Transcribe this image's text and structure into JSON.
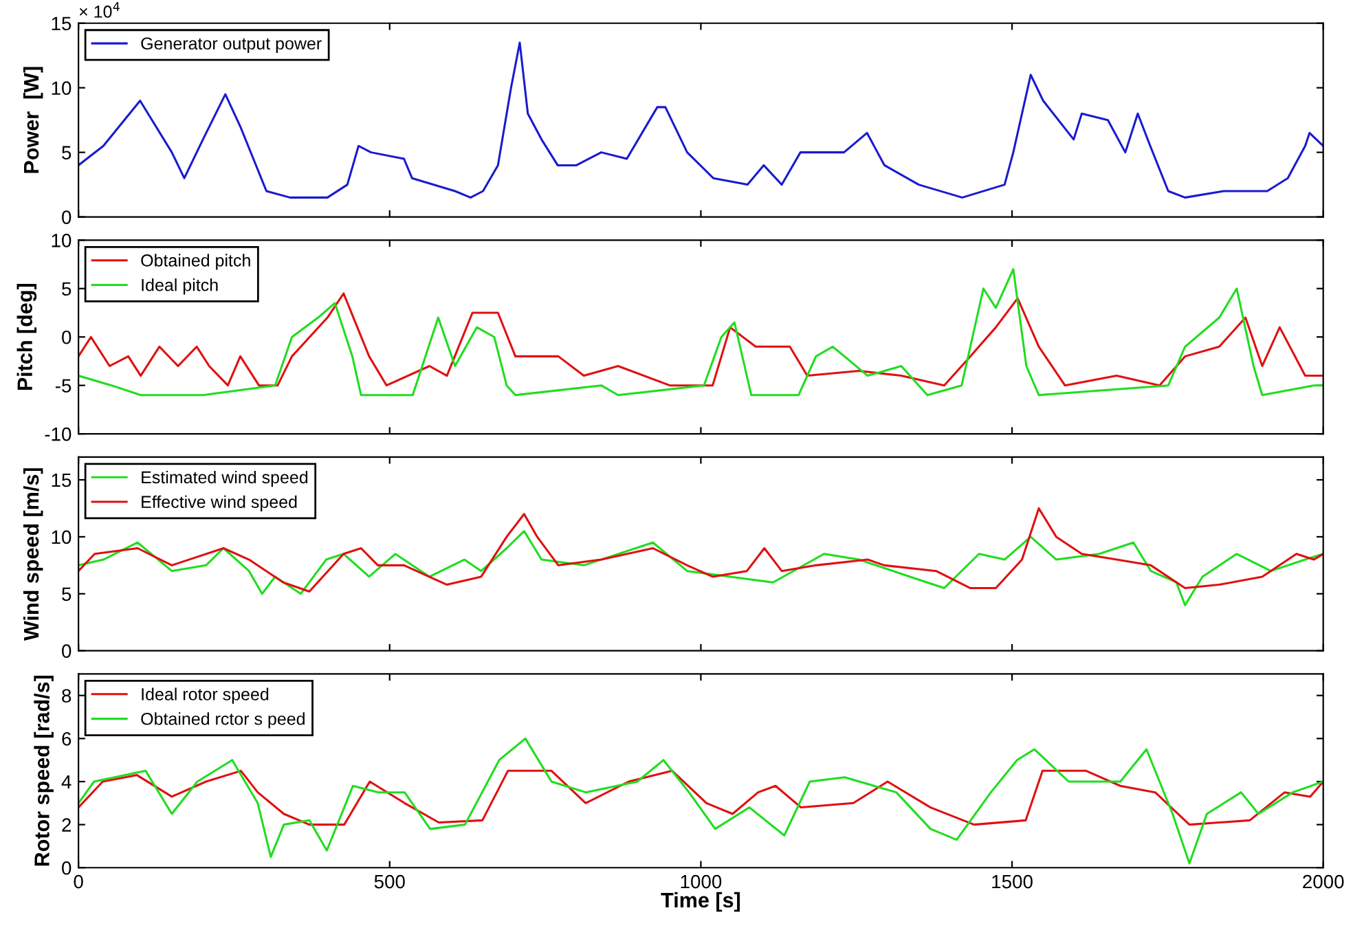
{
  "chart_data": [
    {
      "type": "line",
      "ylabel": "Power  [W]",
      "annotations": [
        "× 10$^{4}$"
      ],
      "xlim": [
        0,
        2000
      ],
      "xticks": [
        0,
        500,
        1000,
        1500,
        2000
      ],
      "ylim": [
        0,
        15
      ],
      "yticks": [
        0,
        5,
        10,
        15
      ],
      "tick_labels": "y",
      "legend": "top left",
      "grid": false,
      "series": [
        {
          "name": "Generator output power",
          "color": "#1a1ad0",
          "x": [
            0,
            40,
            99,
            150,
            170,
            200,
            236,
            260,
            302,
            340,
            400,
            432,
            450,
            470,
            523,
            536,
            605,
            630,
            650,
            674,
            695,
            709,
            722,
            744,
            770,
            800,
            840,
            881,
            930,
            943,
            978,
            1020,
            1075,
            1101,
            1130,
            1160,
            1230,
            1267,
            1295,
            1350,
            1420,
            1488,
            1502,
            1530,
            1550,
            1599,
            1612,
            1654,
            1682,
            1702,
            1722,
            1751,
            1778,
            1840,
            1910,
            1943,
            1971,
            1978,
            2000
          ],
          "values": [
            4,
            5.5,
            9,
            5,
            3,
            6,
            9.5,
            7,
            2,
            1.5,
            1.5,
            2.5,
            5.5,
            5,
            4.5,
            3,
            2,
            1.5,
            2,
            4,
            10,
            13.5,
            8,
            6,
            4,
            4,
            5,
            4.5,
            8.5,
            8.5,
            5,
            3,
            2.5,
            4,
            2.5,
            5,
            5,
            6.5,
            4,
            2.5,
            1.5,
            2.5,
            5,
            11,
            9,
            6,
            8,
            7.5,
            5,
            8,
            5.5,
            2,
            1.5,
            2,
            2,
            3,
            5.5,
            6.5,
            5.5
          ]
        }
      ]
    },
    {
      "type": "line",
      "ylabel": "Pitch [deg]",
      "xlim": [
        0,
        2000
      ],
      "xticks": [
        0,
        500,
        1000,
        1500,
        2000
      ],
      "ylim": [
        -10,
        10
      ],
      "yticks": [
        -10,
        -5,
        0,
        5,
        10
      ],
      "tick_labels": "y",
      "legend": "top left",
      "grid": false,
      "series": [
        {
          "name": "Obtained pitch",
          "color": "#e01010",
          "x": [
            0,
            20,
            50,
            80,
            100,
            130,
            160,
            190,
            210,
            240,
            260,
            290,
            320,
            343,
            400,
            426,
            467,
            495,
            564,
            592,
            633,
            674,
            702,
            771,
            812,
            867,
            950,
            1019,
            1047,
            1088,
            1143,
            1171,
            1254,
            1322,
            1391,
            1433,
            1474,
            1509,
            1543,
            1585,
            1668,
            1737,
            1778,
            1833,
            1875,
            1902,
            1930,
            1971,
            2000
          ],
          "values": [
            -2,
            0,
            -3,
            -2,
            -4,
            -1,
            -3,
            -1,
            -3,
            -5,
            -2,
            -5,
            -5,
            -2,
            2,
            4.5,
            -2,
            -5,
            -3,
            -4,
            2.5,
            2.5,
            -2,
            -2,
            -4,
            -3,
            -5,
            -5,
            1,
            -1,
            -1,
            -4,
            -3.5,
            -4,
            -5,
            -2,
            1,
            4,
            -1,
            -5,
            -4,
            -5,
            -2,
            -1,
            2,
            -3,
            1,
            -4,
            -4
          ]
        },
        {
          "name": "Ideal pitch",
          "color": "#20dd20",
          "x": [
            0,
            53,
            100,
            200,
            316,
            343,
            385,
            412,
            440,
            454,
            537,
            578,
            605,
            640,
            668,
            688,
            702,
            840,
            867,
            1005,
            1033,
            1054,
            1081,
            1157,
            1185,
            1212,
            1268,
            1322,
            1364,
            1419,
            1454,
            1474,
            1502,
            1523,
            1543,
            1751,
            1778,
            1833,
            1861,
            1888,
            1902,
            1985,
            2000
          ],
          "values": [
            -4,
            -5,
            -6,
            -6,
            -5,
            0,
            2,
            3.5,
            -2,
            -6,
            -6,
            2,
            -3,
            1,
            0,
            -5,
            -6,
            -5,
            -6,
            -5,
            0,
            1.5,
            -6,
            -6,
            -2,
            -1,
            -4,
            -3,
            -6,
            -5,
            5,
            3,
            7,
            -3,
            -6,
            -5,
            -1,
            2,
            5,
            -3,
            -6,
            -5,
            -5
          ]
        }
      ]
    },
    {
      "type": "line",
      "ylabel": "Wind speed [m/s]",
      "xlim": [
        0,
        2000
      ],
      "xticks": [
        0,
        500,
        1000,
        1500,
        2000
      ],
      "ylim": [
        0,
        17
      ],
      "yticks": [
        0,
        5,
        10,
        15
      ],
      "tick_labels": "y",
      "legend": "top left",
      "grid": false,
      "series": [
        {
          "name": "Estimated wind speed",
          "color": "#20dd20",
          "x": [
            0,
            40,
            95,
            150,
            205,
            233,
            274,
            295,
            316,
            357,
            398,
            426,
            467,
            509,
            564,
            620,
            647,
            688,
            716,
            744,
            812,
            923,
            978,
            1047,
            1116,
            1198,
            1254,
            1336,
            1391,
            1447,
            1488,
            1530,
            1571,
            1640,
            1695,
            1723,
            1764,
            1778,
            1806,
            1861,
            1916,
            1971,
            2000
          ],
          "values": [
            7.5,
            8,
            9.5,
            7,
            7.5,
            9,
            7,
            5,
            6.5,
            5,
            8,
            8.5,
            6.5,
            8.5,
            6.5,
            8,
            7,
            9,
            10.5,
            8,
            7.5,
            9.5,
            7,
            6.5,
            6,
            8.5,
            8,
            6.5,
            5.5,
            8.5,
            8,
            10,
            8,
            8.5,
            9.5,
            7,
            6,
            4,
            6.5,
            8.5,
            7,
            8,
            8.5
          ]
        },
        {
          "name": "Effective wind speed",
          "color": "#e01010",
          "x": [
            0,
            26,
            95,
            150,
            233,
            274,
            329,
            371,
            426,
            454,
            481,
            523,
            592,
            647,
            688,
            716,
            737,
            771,
            840,
            923,
            978,
            1019,
            1074,
            1102,
            1130,
            1185,
            1268,
            1295,
            1378,
            1433,
            1474,
            1516,
            1543,
            1571,
            1612,
            1668,
            1723,
            1778,
            1833,
            1902,
            1957,
            1985,
            2000
          ],
          "values": [
            7,
            8.5,
            9,
            7.5,
            9,
            8,
            6,
            5.2,
            8.5,
            9,
            7.5,
            7.5,
            5.8,
            6.5,
            10,
            12,
            10,
            7.5,
            8,
            9,
            7.5,
            6.5,
            7,
            9,
            7,
            7.5,
            8,
            7.5,
            7,
            5.5,
            5.5,
            8,
            12.5,
            10,
            8.5,
            8,
            7.5,
            5.5,
            5.8,
            6.5,
            8.5,
            8,
            8.5
          ]
        }
      ]
    },
    {
      "type": "line",
      "xlabel": "Time [s]",
      "ylabel": "Rotor speed [rad/s]",
      "xlim": [
        0,
        2000
      ],
      "xticks": [
        0,
        500,
        1000,
        1500,
        2000
      ],
      "ylim": [
        0,
        9
      ],
      "yticks": [
        0,
        2,
        4,
        6,
        8
      ],
      "legend": "top left",
      "grid": false,
      "series": [
        {
          "name": "Ideal rotor speed",
          "color": "#e01010",
          "x": [
            0,
            39,
            94,
            150,
            205,
            261,
            288,
            330,
            371,
            427,
            468,
            524,
            579,
            649,
            690,
            760,
            815,
            884,
            954,
            1009,
            1051,
            1092,
            1120,
            1161,
            1245,
            1300,
            1369,
            1439,
            1522,
            1549,
            1619,
            1674,
            1730,
            1785,
            1882,
            1938,
            1979,
            2000
          ],
          "values": [
            2.8,
            4,
            4.3,
            3.3,
            4,
            4.5,
            3.5,
            2.5,
            2,
            2,
            4,
            3,
            2.1,
            2.2,
            4.5,
            4.5,
            3,
            4,
            4.5,
            3,
            2.5,
            3.5,
            3.8,
            2.8,
            3,
            4,
            2.8,
            2,
            2.2,
            4.5,
            4.5,
            3.8,
            3.5,
            2,
            2.2,
            3.5,
            3.3,
            4
          ]
        },
        {
          "name": "Obtained rctor s peed",
          "color": "#20dd20",
          "x": [
            0,
            25,
            108,
            150,
            191,
            247,
            288,
            309,
            330,
            371,
            399,
            441,
            482,
            524,
            565,
            621,
            676,
            718,
            760,
            815,
            898,
            940,
            981,
            1023,
            1078,
            1134,
            1175,
            1231,
            1314,
            1369,
            1411,
            1466,
            1508,
            1536,
            1591,
            1674,
            1716,
            1758,
            1785,
            1813,
            1868,
            1896,
            1951,
            2000
          ],
          "values": [
            3,
            4,
            4.5,
            2.5,
            4,
            5,
            3,
            0.5,
            2,
            2.2,
            0.8,
            3.8,
            3.5,
            3.5,
            1.8,
            2,
            5,
            6,
            4,
            3.5,
            4,
            5,
            3.5,
            1.8,
            2.8,
            1.5,
            4,
            4.2,
            3.5,
            1.8,
            1.3,
            3.5,
            5,
            5.5,
            4,
            4,
            5.5,
            2.5,
            0.2,
            2.5,
            3.5,
            2.5,
            3.5,
            4
          ]
        }
      ]
    }
  ]
}
